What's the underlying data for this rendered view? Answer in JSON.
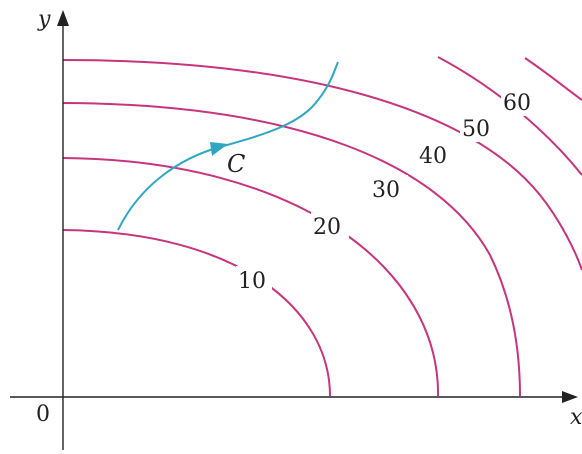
{
  "axes": {
    "x_label": "x",
    "y_label": "y",
    "origin_label": "0"
  },
  "curve": {
    "label": "C"
  },
  "contours": [
    {
      "level": "10"
    },
    {
      "level": "20"
    },
    {
      "level": "30"
    },
    {
      "level": "40"
    },
    {
      "level": "50"
    },
    {
      "level": "60"
    }
  ],
  "colors": {
    "contour": "#c8347e",
    "curve": "#2ea6c4",
    "axis": "#222222"
  }
}
